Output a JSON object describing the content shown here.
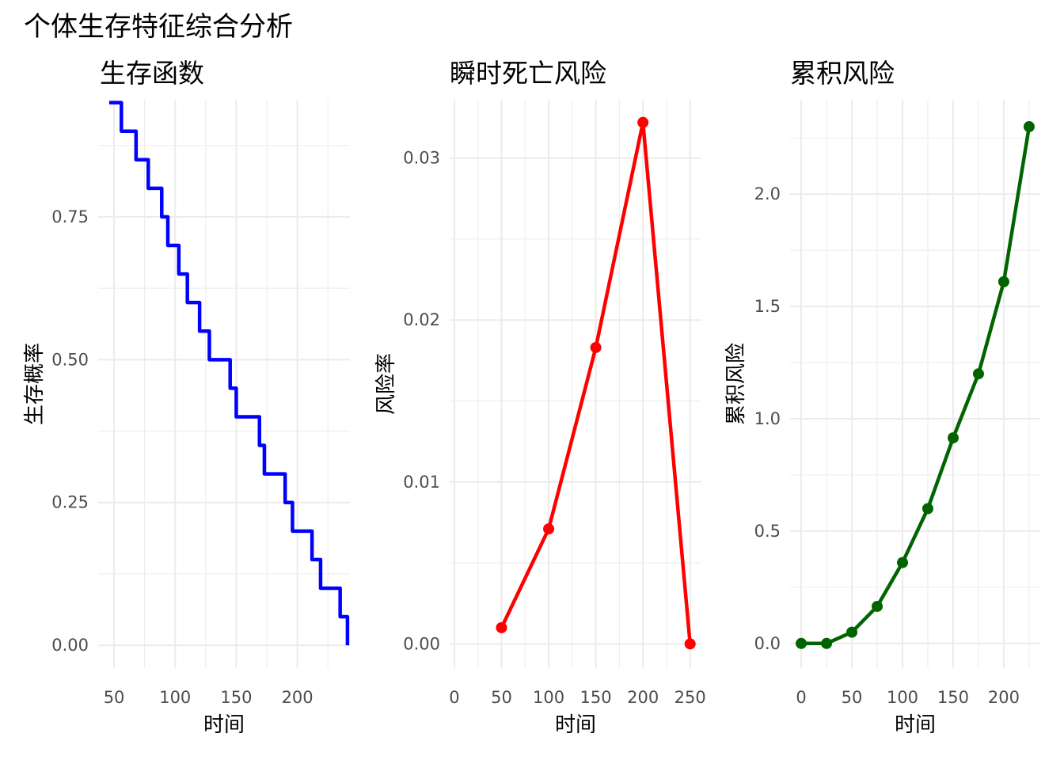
{
  "title": "个体生存特征综合分析",
  "chart_data": [
    {
      "type": "line",
      "step": true,
      "title": "生存函数",
      "xlabel": "时间",
      "ylabel": "生存概率",
      "color": "#0000ff",
      "xlim": [
        37,
        243
      ],
      "ylim": [
        -0.04,
        0.955
      ],
      "xticks": [
        50,
        100,
        150,
        200
      ],
      "yticks": [
        0,
        0.25,
        0.5,
        0.75
      ],
      "ytick_labels": [
        "0.00",
        "0.25",
        "0.50",
        "0.75"
      ],
      "x": [
        46,
        56,
        68,
        78,
        89,
        94,
        103,
        110,
        120,
        128,
        145,
        150,
        169,
        173,
        190,
        196,
        212,
        219,
        235,
        241
      ],
      "y": [
        0.95,
        0.9,
        0.85,
        0.8,
        0.75,
        0.7,
        0.65,
        0.6,
        0.55,
        0.5,
        0.45,
        0.4,
        0.35,
        0.3,
        0.25,
        0.2,
        0.15,
        0.1,
        0.05,
        0.0
      ]
    },
    {
      "type": "line",
      "title": "瞬时死亡风险",
      "xlabel": "时间",
      "ylabel": "风险率",
      "color": "#ff0000",
      "points": true,
      "xlim": [
        -5,
        262
      ],
      "ylim": [
        -0.0015,
        0.0336
      ],
      "xticks": [
        0,
        50,
        100,
        150,
        200,
        250
      ],
      "yticks": [
        0,
        0.01,
        0.02,
        0.03
      ],
      "ytick_labels": [
        "0.00",
        "0.01",
        "0.02",
        "0.03"
      ],
      "x": [
        50,
        100,
        150,
        200,
        250
      ],
      "y": [
        0.001,
        0.0071,
        0.0183,
        0.0322,
        0.0
      ]
    },
    {
      "type": "line",
      "title": "累积风险",
      "xlabel": "时间",
      "ylabel": "累积风险",
      "color": "#006400",
      "points": true,
      "xlim": [
        -11,
        236
      ],
      "ylim": [
        -0.11,
        2.42
      ],
      "xticks": [
        0,
        50,
        100,
        150,
        200
      ],
      "yticks": [
        0,
        0.5,
        1,
        1.5,
        2
      ],
      "ytick_labels": [
        "0.0",
        "0.5",
        "1.0",
        "1.5",
        "2.0"
      ],
      "x": [
        0,
        25,
        50,
        75,
        100,
        125,
        150,
        175,
        200,
        225
      ],
      "y": [
        0.0,
        0.0,
        0.05,
        0.165,
        0.36,
        0.6,
        0.915,
        1.2,
        1.61,
        2.3
      ]
    }
  ]
}
